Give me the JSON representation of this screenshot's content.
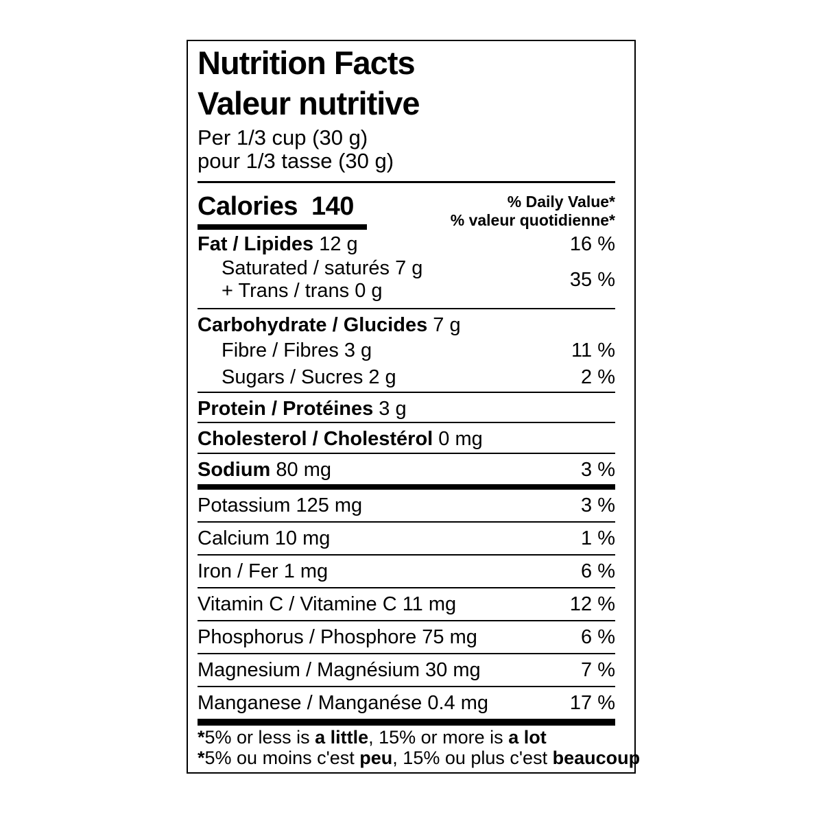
{
  "colors": {
    "background": "#ffffff",
    "text": "#000000",
    "border": "#000000"
  },
  "label": {
    "title_en": "Nutrition Facts",
    "title_fr": "Valeur nutritive",
    "serving_en": "Per 1/3 cup (30 g)",
    "serving_fr": "pour 1/3 tasse (30 g)",
    "calories_label": "Calories",
    "calories_value": "140",
    "dv_header_en": "% Daily Value*",
    "dv_header_fr": "% valeur quotidienne*",
    "rows": {
      "fat": {
        "name": "Fat / Lipides",
        "rest": " 12 g",
        "dv": "16 %"
      },
      "saturated_trans": {
        "line1": "Saturated / saturés 7 g",
        "line2": "+ Trans / trans 0 g",
        "dv": "35 %"
      },
      "carbohydrate": {
        "name": "Carbohydrate / Glucides",
        "rest": " 7 g"
      },
      "fibre": {
        "text": "Fibre / Fibres 3 g",
        "dv": "11 %"
      },
      "sugars": {
        "text": "Sugars / Sucres 2 g",
        "dv": "2 %"
      },
      "protein": {
        "name": "Protein / Protéines",
        "rest": " 3 g"
      },
      "cholesterol": {
        "name": "Cholesterol / Cholestérol",
        "rest": " 0 mg"
      },
      "sodium": {
        "name": "Sodium",
        "rest": " 80 mg",
        "dv": "3 %"
      },
      "potassium": {
        "text": "Potassium 125 mg",
        "dv": "3 %"
      },
      "calcium": {
        "text": "Calcium 10 mg",
        "dv": "1 %"
      },
      "iron": {
        "text": "Iron / Fer 1 mg",
        "dv": "6 %"
      },
      "vitamin_c": {
        "text": "Vitamin C / Vitamine C 11 mg",
        "dv": "12 %"
      },
      "phosphorus": {
        "text": "Phosphorus / Phosphore 75 mg",
        "dv": "6 %"
      },
      "magnesium": {
        "text": "Magnesium / Magnésium 30 mg",
        "dv": "7 %"
      },
      "manganese": {
        "text": "Manganese / Manganése 0.4 mg",
        "dv": "17 %"
      }
    },
    "footnote_en": {
      "star": "*",
      "pre": "5% or less is ",
      "bold1": "a little",
      "mid": ", 15% or more is ",
      "bold2": "a lot"
    },
    "footnote_fr": {
      "star": "*",
      "pre": "5% ou moins c'est ",
      "bold1": "peu",
      "mid": ", 15% ou plus c'est ",
      "bold2": "beaucoup"
    }
  }
}
